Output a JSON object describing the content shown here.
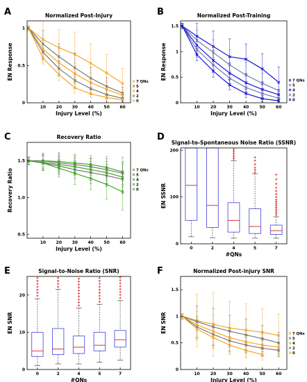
{
  "chart_data": [
    {
      "id": "A",
      "type": "line",
      "panel_label": "A",
      "title": "Normalized Post-Injury",
      "xlabel": "Injury Level (%)",
      "ylabel": "EN Response",
      "xticks": [
        10,
        20,
        30,
        40,
        50,
        60
      ],
      "yticks": [
        0,
        0.5,
        1
      ],
      "ytick_labels": [
        "0",
        "0.5",
        "1"
      ],
      "xlim": [
        0,
        65
      ],
      "ylim": [
        0,
        1.1
      ],
      "legend_position": "right",
      "series": [
        {
          "name": "7 QNs",
          "color": "#F5A623",
          "x": [
            1,
            10,
            20,
            30,
            40,
            50,
            60
          ],
          "y": [
            1.0,
            0.85,
            0.74,
            0.65,
            0.53,
            0.4,
            0.26
          ],
          "err": [
            0.03,
            0.3,
            0.24,
            0.3,
            0.26,
            0.25,
            0.2
          ]
        },
        {
          "name": "5",
          "color": "#777777",
          "x": [
            1,
            10,
            20,
            30,
            40,
            50,
            60
          ],
          "y": [
            1.0,
            0.79,
            0.62,
            0.47,
            0.33,
            0.22,
            0.13
          ],
          "err": [
            0.03,
            0.18,
            0.17,
            0.2,
            0.15,
            0.12,
            0.08
          ]
        },
        {
          "name": "4",
          "color": "#F5A623",
          "x": [
            1,
            10,
            20,
            30,
            40,
            50,
            60
          ],
          "y": [
            1.0,
            0.72,
            0.54,
            0.39,
            0.27,
            0.18,
            0.1
          ],
          "err": [
            0.03,
            0.12,
            0.15,
            0.14,
            0.13,
            0.1,
            0.07
          ]
        },
        {
          "name": "2",
          "color": "#777777",
          "x": [
            1,
            10,
            20,
            30,
            40,
            50,
            60
          ],
          "y": [
            1.0,
            0.68,
            0.46,
            0.3,
            0.19,
            0.11,
            0.06
          ],
          "err": [
            0.03,
            0.1,
            0.1,
            0.1,
            0.08,
            0.06,
            0.04
          ]
        },
        {
          "name": "0",
          "color": "#F5A623",
          "x": [
            1,
            10,
            20,
            30,
            40,
            50,
            60
          ],
          "y": [
            1.0,
            0.6,
            0.38,
            0.2,
            0.12,
            0.07,
            0.04
          ],
          "err": [
            0.03,
            0.08,
            0.08,
            0.07,
            0.05,
            0.04,
            0.03
          ]
        }
      ]
    },
    {
      "id": "B",
      "type": "line",
      "panel_label": "B",
      "title": "Normalized Post-Training",
      "xlabel": "Injury Level (%)",
      "ylabel": "EN Response",
      "xticks": [
        10,
        20,
        30,
        40,
        50,
        60
      ],
      "yticks": [
        0,
        0.5,
        1,
        1.5
      ],
      "ytick_labels": [
        "0",
        "0.5",
        "1",
        "1.5"
      ],
      "xlim": [
        0,
        65
      ],
      "ylim": [
        0,
        1.6
      ],
      "legend_position": "right",
      "series": [
        {
          "name": "7 QNs",
          "color": "#1414D8",
          "x": [
            1,
            10,
            20,
            30,
            40,
            50,
            60
          ],
          "y": [
            1.5,
            1.3,
            1.1,
            0.9,
            0.85,
            0.66,
            0.4
          ],
          "err": [
            0.05,
            0.25,
            0.3,
            0.35,
            0.3,
            0.3,
            0.3
          ]
        },
        {
          "name": "5",
          "color": "#7777AA",
          "x": [
            1,
            10,
            20,
            30,
            40,
            50,
            60
          ],
          "y": [
            1.5,
            1.22,
            0.98,
            0.74,
            0.54,
            0.38,
            0.24
          ],
          "err": [
            0.05,
            0.2,
            0.25,
            0.3,
            0.25,
            0.2,
            0.15
          ]
        },
        {
          "name": "4",
          "color": "#1414D8",
          "x": [
            1,
            10,
            20,
            30,
            40,
            50,
            60
          ],
          "y": [
            1.5,
            1.12,
            0.83,
            0.58,
            0.39,
            0.26,
            0.16
          ],
          "err": [
            0.05,
            0.18,
            0.2,
            0.2,
            0.18,
            0.15,
            0.1
          ]
        },
        {
          "name": "2",
          "color": "#7777AA",
          "x": [
            1,
            10,
            20,
            30,
            40,
            50,
            60
          ],
          "y": [
            1.5,
            1.04,
            0.74,
            0.48,
            0.3,
            0.18,
            0.09
          ],
          "err": [
            0.05,
            0.15,
            0.15,
            0.15,
            0.12,
            0.1,
            0.07
          ]
        },
        {
          "name": "0",
          "color": "#1414D8",
          "x": [
            1,
            10,
            20,
            30,
            40,
            50,
            60
          ],
          "y": [
            1.5,
            0.94,
            0.62,
            0.35,
            0.18,
            0.08,
            0.04
          ],
          "err": [
            0.05,
            0.12,
            0.12,
            0.1,
            0.08,
            0.06,
            0.04
          ]
        }
      ]
    },
    {
      "id": "C",
      "type": "line",
      "panel_label": "C",
      "title": "Recovery Ratio",
      "xlabel": "Injury Level (%)",
      "ylabel": "Recovery Ratio",
      "xticks": [
        10,
        20,
        30,
        40,
        50,
        60
      ],
      "yticks": [
        0.5,
        1,
        1.5
      ],
      "ytick_labels": [
        "0.5",
        "1.0",
        "1.5"
      ],
      "xlim": [
        0,
        65
      ],
      "ylim": [
        0.45,
        1.75
      ],
      "legend_position": "right",
      "series": [
        {
          "name": "7 QNs",
          "color": "#3DAA1E",
          "x": [
            1,
            10,
            20,
            30,
            40,
            50,
            60
          ],
          "y": [
            1.5,
            1.5,
            1.49,
            1.47,
            1.45,
            1.41,
            1.35
          ],
          "err": [
            0.05,
            0.1,
            0.12,
            0.12,
            0.12,
            0.15,
            0.2
          ]
        },
        {
          "name": "5",
          "color": "#777777",
          "x": [
            1,
            10,
            20,
            30,
            40,
            50,
            60
          ],
          "y": [
            1.5,
            1.5,
            1.47,
            1.45,
            1.42,
            1.38,
            1.33
          ],
          "err": [
            0.05,
            0.1,
            0.12,
            0.12,
            0.12,
            0.15,
            0.15
          ]
        },
        {
          "name": "4",
          "color": "#3DAA1E",
          "x": [
            1,
            10,
            20,
            30,
            40,
            50,
            60
          ],
          "y": [
            1.5,
            1.48,
            1.45,
            1.42,
            1.38,
            1.34,
            1.28
          ],
          "err": [
            0.05,
            0.1,
            0.12,
            0.12,
            0.15,
            0.15,
            0.2
          ]
        },
        {
          "name": "2",
          "color": "#777777",
          "x": [
            1,
            10,
            20,
            30,
            40,
            50,
            60
          ],
          "y": [
            1.5,
            1.47,
            1.43,
            1.38,
            1.34,
            1.3,
            1.25
          ],
          "err": [
            0.05,
            0.1,
            0.12,
            0.12,
            0.15,
            0.15,
            0.2
          ]
        },
        {
          "name": "0",
          "color": "#3DAA1E",
          "x": [
            1,
            10,
            20,
            30,
            40,
            50,
            60
          ],
          "y": [
            1.5,
            1.47,
            1.4,
            1.33,
            1.26,
            1.18,
            1.08
          ],
          "err": [
            0.05,
            0.1,
            0.12,
            0.15,
            0.15,
            0.2,
            0.25
          ]
        }
      ]
    },
    {
      "id": "D",
      "type": "box",
      "panel_label": "D",
      "title": "Signal-to-Spontaneous Noise Ratio (SSNR)",
      "xlabel": "#QNs",
      "ylabel": "EN SSNR",
      "categories": [
        "0",
        "2",
        "4",
        "5",
        "7"
      ],
      "yticks": [
        0,
        100,
        200
      ],
      "ytick_labels": [
        "0",
        "100",
        "200"
      ],
      "ylim": [
        0,
        205
      ],
      "box_color": "#5555DD",
      "median_color": "#DD3333",
      "outlier_color": "#DD2222",
      "boxes": [
        {
          "q1": 50,
          "median": 125,
          "q3": 205,
          "whisker_low": 15,
          "whisker_high": 205,
          "outliers": []
        },
        {
          "q1": 35,
          "median": 82,
          "q3": 205,
          "whisker_low": 13,
          "whisker_high": 205,
          "outliers": []
        },
        {
          "q1": 25,
          "median": 50,
          "q3": 88,
          "whisker_low": 12,
          "whisker_high": 178,
          "outliers": [
            182,
            186,
            190,
            194,
            198,
            202
          ]
        },
        {
          "q1": 22,
          "median": 37,
          "q3": 75,
          "whisker_low": 12,
          "whisker_high": 150,
          "outliers": [
            153,
            158,
            163,
            170,
            178,
            185
          ]
        },
        {
          "q1": 20,
          "median": 28,
          "q3": 40,
          "whisker_low": 12,
          "whisker_high": 58,
          "outliers": [
            62,
            66,
            70,
            74,
            78,
            82,
            86,
            90,
            94,
            100,
            106,
            113,
            120,
            128,
            138,
            148
          ]
        }
      ]
    },
    {
      "id": "E",
      "type": "box",
      "panel_label": "E",
      "title": "Signal-to-Noise Ratio (SNR)",
      "xlabel": "#QNs",
      "ylabel": "EN SNR",
      "categories": [
        "0",
        "2",
        "4",
        "5",
        "7"
      ],
      "yticks": [
        0,
        10,
        20
      ],
      "ytick_labels": [
        "0",
        "10",
        "20"
      ],
      "ylim": [
        0,
        25
      ],
      "box_color": "#5555DD",
      "median_color": "#DD3333",
      "outlier_color": "#DD2222",
      "boxes": [
        {
          "q1": 3.5,
          "median": 5,
          "q3": 10,
          "whisker_low": 1,
          "whisker_high": 19,
          "outliers": [
            19.8,
            20.6,
            21.4,
            22.2,
            23,
            23.8,
            24.6
          ]
        },
        {
          "q1": 4,
          "median": 5.5,
          "q3": 11,
          "whisker_low": 1.5,
          "whisker_high": 21.5,
          "outliers": [
            22.2,
            23,
            23.8,
            24.6
          ]
        },
        {
          "q1": 4.3,
          "median": 6,
          "q3": 9,
          "whisker_low": 1.5,
          "whisker_high": 16.5,
          "outliers": [
            17.2,
            18,
            18.8,
            19.6,
            20.4,
            21.2,
            22,
            22.8,
            23.6,
            24.4
          ]
        },
        {
          "q1": 5,
          "median": 6.5,
          "q3": 10,
          "whisker_low": 2,
          "whisker_high": 17.5,
          "outliers": [
            18.2,
            19,
            19.8,
            20.6,
            21.4,
            22.2,
            23,
            23.8,
            24.6
          ]
        },
        {
          "q1": 6,
          "median": 8,
          "q3": 10.5,
          "whisker_low": 2.5,
          "whisker_high": 18.5,
          "outliers": [
            19.2,
            20,
            20.8,
            21.6,
            22.4,
            23.2,
            24,
            24.8
          ]
        }
      ]
    },
    {
      "id": "F",
      "type": "line",
      "panel_label": "F",
      "title": "Normalized Post-injury SNR",
      "xlabel": "Injury Level (%)",
      "ylabel": "EN SNR",
      "xticks": [
        10,
        20,
        30,
        40,
        50,
        60
      ],
      "yticks": [
        0,
        0.5,
        1,
        1.5
      ],
      "ytick_labels": [
        "0",
        "0.5",
        "1",
        "1.5"
      ],
      "xlim": [
        0,
        65
      ],
      "ylim": [
        0,
        1.75
      ],
      "legend_position": "right",
      "series": [
        {
          "name": "7 QNs",
          "color": "#F5A623",
          "x": [
            1,
            10,
            20,
            30,
            40,
            50,
            60
          ],
          "y": [
            1.0,
            0.92,
            0.85,
            0.78,
            0.74,
            0.7,
            0.64
          ],
          "err": [
            0.05,
            0.5,
            0.6,
            0.5,
            0.5,
            0.45,
            0.4
          ]
        },
        {
          "name": "5",
          "color": "#777777",
          "x": [
            1,
            10,
            20,
            30,
            40,
            50,
            60
          ],
          "y": [
            1.0,
            0.9,
            0.8,
            0.72,
            0.65,
            0.58,
            0.5
          ],
          "err": [
            0.05,
            0.3,
            0.35,
            0.3,
            0.3,
            0.25,
            0.2
          ]
        },
        {
          "name": "4",
          "color": "#F5A623",
          "x": [
            1,
            10,
            20,
            30,
            40,
            50,
            60
          ],
          "y": [
            1.0,
            0.84,
            0.72,
            0.6,
            0.52,
            0.46,
            0.42
          ],
          "err": [
            0.05,
            0.25,
            0.3,
            0.25,
            0.2,
            0.2,
            0.15
          ]
        },
        {
          "name": "2",
          "color": "#777777",
          "x": [
            1,
            10,
            20,
            30,
            40,
            50,
            60
          ],
          "y": [
            1.0,
            0.8,
            0.66,
            0.54,
            0.46,
            0.4,
            0.36
          ],
          "err": [
            0.05,
            0.2,
            0.2,
            0.2,
            0.15,
            0.15,
            0.12
          ]
        },
        {
          "name": "0",
          "color": "#F5A623",
          "x": [
            1,
            10,
            20,
            30,
            40,
            50
          ],
          "y": [
            1.0,
            0.76,
            0.6,
            0.46,
            0.36,
            0.28
          ],
          "err": [
            0.05,
            0.2,
            0.2,
            0.15,
            0.15,
            0.1
          ]
        }
      ]
    }
  ]
}
